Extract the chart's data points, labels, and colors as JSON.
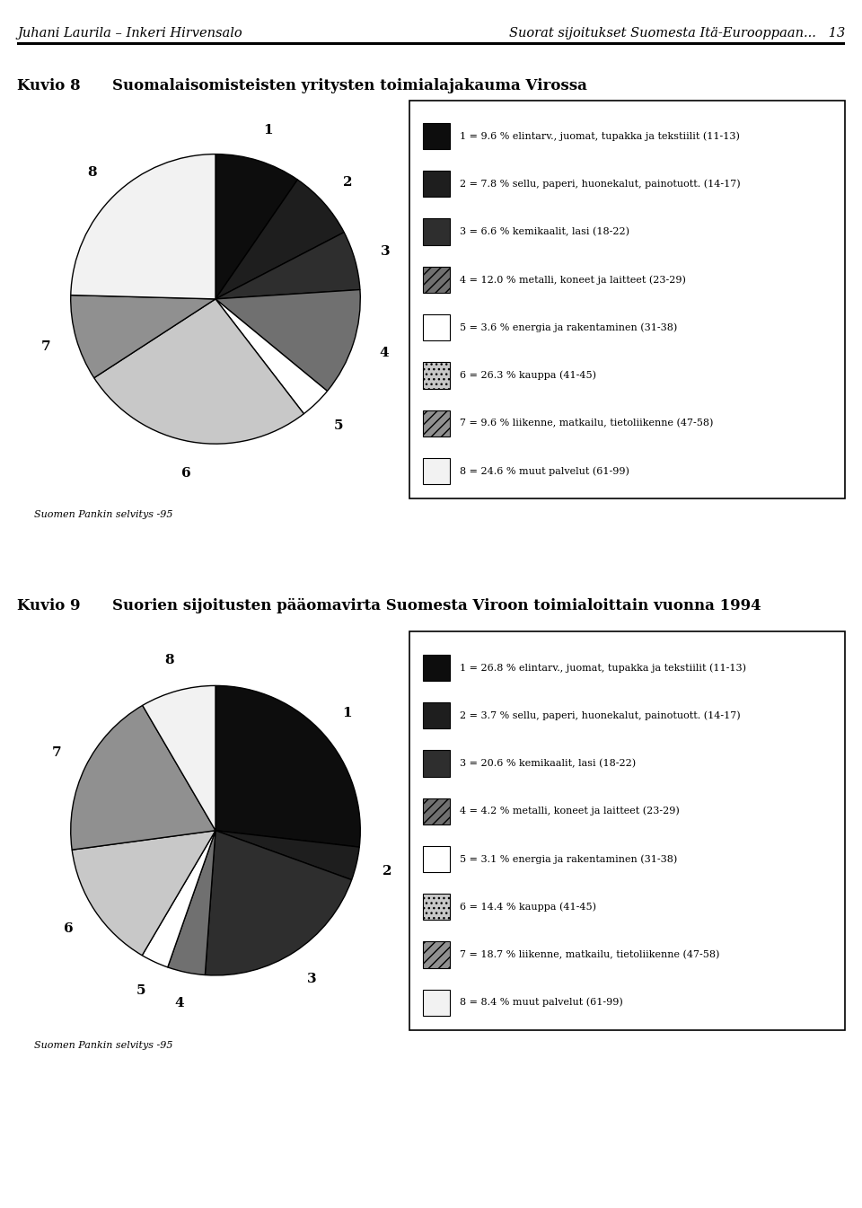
{
  "header_left": "Juhani Laurila – Inkeri Hirvensalo",
  "header_right": "Suorat sijoitukset Suomesta Itä-Eurooppaan...   13",
  "chart1_kuvio": "Kuvio 8",
  "chart1_title": "Suomalaisomisteisten yritysten toimialajakauma Virossa",
  "chart1_source": "Suomen Pankin selvitys -95",
  "chart1_values": [
    9.6,
    7.8,
    6.6,
    12.0,
    3.6,
    26.3,
    9.6,
    24.6
  ],
  "chart1_labels": [
    "1",
    "2",
    "3",
    "4",
    "5",
    "6",
    "7",
    "8"
  ],
  "chart1_legend": [
    "1 = 9.6 % elintarv., juomat, tupakka ja tekstiilit (11-13)",
    "2 = 7.8 % sellu, paperi, huonekalut, painotuott. (14-17)",
    "3 = 6.6 % kemikaalit, lasi (18-22)",
    "4 = 12.0 % metalli, koneet ja laitteet (23-29)",
    "5 = 3.6 % energia ja rakentaminen (31-38)",
    "6 = 26.3 % kauppa (41-45)",
    "7 = 9.6 % liikenne, matkailu, tietoliikenne (47-58)",
    "8 = 24.6 % muut palvelut (61-99)"
  ],
  "chart2_kuvio": "Kuvio 9",
  "chart2_title": "Suorien sijoitusten pääomavirta Suomesta Viroon toimialoittain vuonna 1994",
  "chart2_source": "Suomen Pankin selvitys -95",
  "chart2_values": [
    26.8,
    3.7,
    20.6,
    4.2,
    3.1,
    14.4,
    18.7,
    8.4
  ],
  "chart2_labels": [
    "1",
    "2",
    "3",
    "4",
    "5",
    "6",
    "7",
    "8"
  ],
  "chart2_legend": [
    "1 = 26.8 % elintarv., juomat, tupakka ja tekstiilit (11-13)",
    "2 = 3.7 % sellu, paperi, huonekalut, painotuott. (14-17)",
    "3 = 20.6 % kemikaalit, lasi (18-22)",
    "4 = 4.2 % metalli, koneet ja laitteet (23-29)",
    "5 = 3.1 % energia ja rakentaminen (31-38)",
    "6 = 14.4 % kauppa (41-45)",
    "7 = 18.7 % liikenne, matkailu, tietoliikenne (47-58)",
    "8 = 8.4 % muut palvelut (61-99)"
  ],
  "pie_colors": [
    "#0d0d0d",
    "#1e1e1e",
    "#2e2e2e",
    "#707070",
    "#ffffff",
    "#c8c8c8",
    "#909090",
    "#f2f2f2"
  ],
  "pie_hatches": [
    "",
    "",
    "",
    "",
    "",
    "",
    "",
    ""
  ],
  "legend_colors": [
    "#0d0d0d",
    "#1e1e1e",
    "#2e2e2e",
    "#707070",
    "#ffffff",
    "#c8c8c8",
    "#909090",
    "#f2f2f2"
  ],
  "legend_hatches": [
    "",
    "",
    "",
    "///",
    "",
    "...",
    "///",
    ""
  ]
}
